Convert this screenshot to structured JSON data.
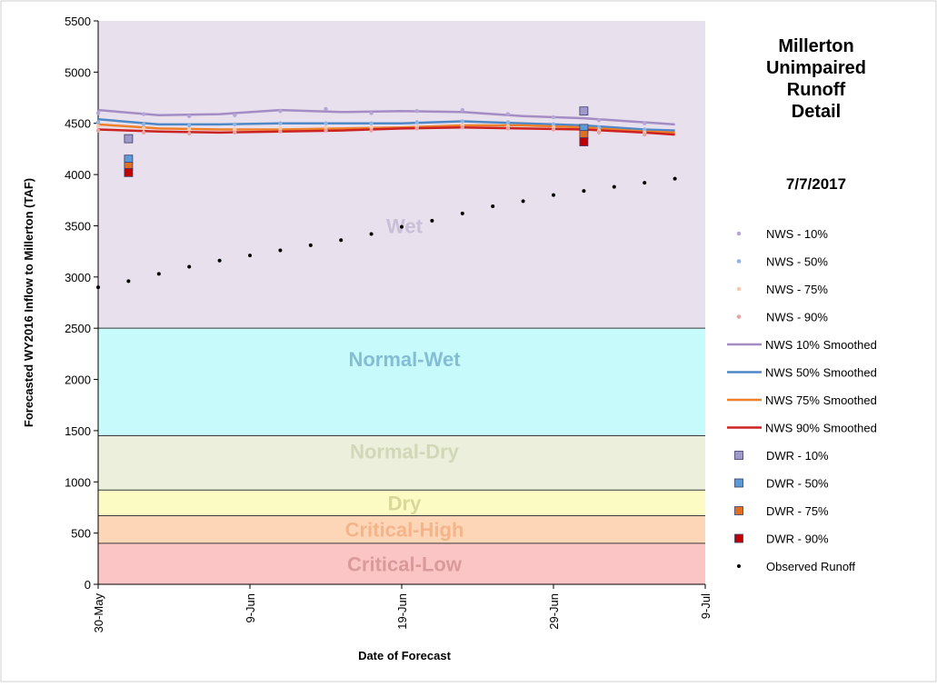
{
  "chart_data": {
    "type": "scatter",
    "title_lines": [
      "Millerton",
      "Unimpaired",
      "Runoff",
      "Detail"
    ],
    "date": "7/7/2017",
    "xlabel": "Date of Forecast",
    "ylabel": "Forecasted WY2016 Inflow to Millerton (TAF)",
    "x_range": [
      "2017-05-30",
      "2017-07-09"
    ],
    "x_tick_labels": [
      "30-May",
      "9-Jun",
      "19-Jun",
      "29-Jun",
      "9-Jul"
    ],
    "x_ticks": [
      "2017-05-30",
      "2017-06-09",
      "2017-06-19",
      "2017-06-29",
      "2017-07-09"
    ],
    "ylim": [
      0,
      5500
    ],
    "y_ticks": [
      0,
      500,
      1000,
      1500,
      2000,
      2500,
      3000,
      3500,
      4000,
      4500,
      5000,
      5500
    ],
    "bands": [
      {
        "name": "Critical-Low",
        "y0": 0,
        "y1": 400,
        "fill": "#fbc5c5",
        "label_color": "#d99a9a"
      },
      {
        "name": "Critical-High",
        "y0": 400,
        "y1": 670,
        "fill": "#fdd6b7",
        "label_color": "#f5b48a"
      },
      {
        "name": "Dry",
        "y0": 670,
        "y1": 920,
        "fill": "#fdfbc4",
        "label_color": "#d9d79a"
      },
      {
        "name": "Normal-Dry",
        "y0": 920,
        "y1": 1450,
        "fill": "#ebefdc",
        "label_color": "#d1d8b8"
      },
      {
        "name": "Normal-Wet",
        "y0": 1450,
        "y1": 2500,
        "fill": "#c7fbfb",
        "label_color": "#86bdd6"
      },
      {
        "name": "Wet",
        "y0": 2500,
        "y1": 5500,
        "fill": "#e8e0ec",
        "label_color": "#c8bfd8"
      }
    ],
    "series": [
      {
        "name": "NWS - 10%",
        "kind": "points",
        "color": "#b4a7d6",
        "x": [
          "2017-05-30",
          "2017-06-02",
          "2017-06-05",
          "2017-06-08",
          "2017-06-11",
          "2017-06-14",
          "2017-06-17",
          "2017-06-20",
          "2017-06-23",
          "2017-06-26",
          "2017-06-29",
          "2017-07-02",
          "2017-07-05"
        ],
        "values": [
          4600,
          4590,
          4570,
          4580,
          4620,
          4640,
          4600,
          4620,
          4630,
          4590,
          4560,
          4530,
          4500
        ]
      },
      {
        "name": "NWS - 50%",
        "kind": "points",
        "color": "#8fb4e3",
        "x": [
          "2017-05-30",
          "2017-06-02",
          "2017-06-05",
          "2017-06-08",
          "2017-06-11",
          "2017-06-14",
          "2017-06-17",
          "2017-06-20",
          "2017-06-23",
          "2017-06-26",
          "2017-06-29",
          "2017-07-02",
          "2017-07-05"
        ],
        "values": [
          4510,
          4490,
          4480,
          4490,
          4500,
          4500,
          4500,
          4510,
          4520,
          4510,
          4490,
          4460,
          4440
        ]
      },
      {
        "name": "NWS - 75%",
        "kind": "points",
        "color": "#f8cbad",
        "x": [
          "2017-05-30",
          "2017-06-02",
          "2017-06-05",
          "2017-06-08",
          "2017-06-11",
          "2017-06-14",
          "2017-06-17",
          "2017-06-20",
          "2017-06-23",
          "2017-06-26",
          "2017-06-29",
          "2017-07-02",
          "2017-07-05"
        ],
        "values": [
          4470,
          4450,
          4440,
          4440,
          4450,
          4460,
          4460,
          4470,
          4480,
          4470,
          4460,
          4430,
          4410
        ]
      },
      {
        "name": "NWS - 90%",
        "kind": "points",
        "color": "#e6a5a5",
        "x": [
          "2017-05-30",
          "2017-06-02",
          "2017-06-05",
          "2017-06-08",
          "2017-06-11",
          "2017-06-14",
          "2017-06-17",
          "2017-06-20",
          "2017-06-23",
          "2017-06-26",
          "2017-06-29",
          "2017-07-02",
          "2017-07-05"
        ],
        "values": [
          4430,
          4410,
          4400,
          4410,
          4420,
          4430,
          4430,
          4450,
          4460,
          4450,
          4440,
          4410,
          4390
        ]
      },
      {
        "name": "NWS 10% Smoothed",
        "kind": "line",
        "color": "#a48cc4",
        "x": [
          "2017-05-30",
          "2017-06-03",
          "2017-06-07",
          "2017-06-11",
          "2017-06-15",
          "2017-06-19",
          "2017-06-23",
          "2017-06-27",
          "2017-07-01",
          "2017-07-05",
          "2017-07-07"
        ],
        "values": [
          4630,
          4580,
          4590,
          4630,
          4610,
          4620,
          4610,
          4570,
          4550,
          4510,
          4490
        ]
      },
      {
        "name": "NWS 50% Smoothed",
        "kind": "line",
        "color": "#4f88c6",
        "x": [
          "2017-05-30",
          "2017-06-03",
          "2017-06-07",
          "2017-06-11",
          "2017-06-15",
          "2017-06-19",
          "2017-06-23",
          "2017-06-27",
          "2017-07-01",
          "2017-07-05",
          "2017-07-07"
        ],
        "values": [
          4540,
          4490,
          4490,
          4500,
          4500,
          4500,
          4520,
          4500,
          4480,
          4440,
          4430
        ]
      },
      {
        "name": "NWS 75% Smoothed",
        "kind": "line",
        "color": "#f07f2a",
        "x": [
          "2017-05-30",
          "2017-06-03",
          "2017-06-07",
          "2017-06-11",
          "2017-06-15",
          "2017-06-19",
          "2017-06-23",
          "2017-06-27",
          "2017-07-01",
          "2017-07-05",
          "2017-07-07"
        ],
        "values": [
          4490,
          4450,
          4440,
          4440,
          4450,
          4460,
          4480,
          4480,
          4460,
          4420,
          4410
        ]
      },
      {
        "name": "NWS 90% Smoothed",
        "kind": "line",
        "color": "#cc2222",
        "x": [
          "2017-05-30",
          "2017-06-03",
          "2017-06-07",
          "2017-06-11",
          "2017-06-15",
          "2017-06-19",
          "2017-06-23",
          "2017-06-27",
          "2017-07-01",
          "2017-07-05",
          "2017-07-07"
        ],
        "values": [
          4440,
          4420,
          4410,
          4420,
          4430,
          4450,
          4460,
          4450,
          4440,
          4410,
          4390
        ]
      },
      {
        "name": "DWR - 10%",
        "kind": "squares",
        "color": "#9f99c9",
        "x": [
          "2017-06-01",
          "2017-07-01"
        ],
        "values": [
          4350,
          4620
        ]
      },
      {
        "name": "DWR - 50%",
        "kind": "squares",
        "color": "#5b9bd5",
        "x": [
          "2017-06-01",
          "2017-07-01"
        ],
        "values": [
          4150,
          4450
        ]
      },
      {
        "name": "DWR - 75%",
        "kind": "squares",
        "color": "#e07020",
        "x": [
          "2017-06-01",
          "2017-07-01"
        ],
        "values": [
          4080,
          4390
        ]
      },
      {
        "name": "DWR - 90%",
        "kind": "squares",
        "color": "#c00000",
        "x": [
          "2017-06-01",
          "2017-07-01"
        ],
        "values": [
          4020,
          4320
        ]
      },
      {
        "name": "Observed Runoff",
        "kind": "dots",
        "color": "#000000",
        "x": [
          "2017-05-30",
          "2017-06-01",
          "2017-06-03",
          "2017-06-05",
          "2017-06-07",
          "2017-06-09",
          "2017-06-11",
          "2017-06-13",
          "2017-06-15",
          "2017-06-17",
          "2017-06-19",
          "2017-06-21",
          "2017-06-23",
          "2017-06-25",
          "2017-06-27",
          "2017-06-29",
          "2017-07-01",
          "2017-07-03",
          "2017-07-05",
          "2017-07-07"
        ],
        "values": [
          2900,
          2960,
          3030,
          3100,
          3160,
          3210,
          3260,
          3310,
          3360,
          3420,
          3490,
          3550,
          3620,
          3690,
          3740,
          3800,
          3840,
          3880,
          3920,
          3960
        ]
      }
    ],
    "legend_position": "right",
    "grid": false
  }
}
